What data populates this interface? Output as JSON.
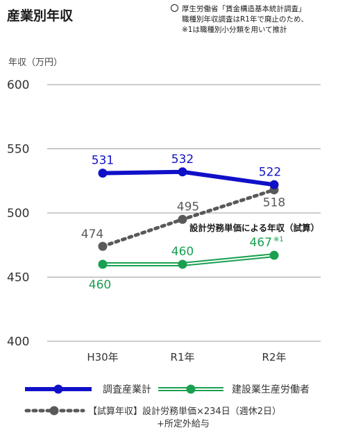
{
  "header": {
    "title": "産業別年収",
    "note_lines": [
      "厚生労働省「賃金構造基本統計調査」",
      "職種別年収調査はR1年で廃止のため、",
      "※1は職種別小分類を用いて推計"
    ]
  },
  "chart_data": {
    "type": "line",
    "ylabel": "年収（万円）",
    "ylim": [
      400,
      600
    ],
    "yticks": [
      400,
      450,
      500,
      550,
      600
    ],
    "grid": true,
    "categories": [
      "H30年",
      "R1年",
      "R2年"
    ],
    "series": [
      {
        "name": "調査産業計",
        "values": [
          531,
          532,
          522
        ],
        "labels": [
          "531",
          "532",
          "522"
        ],
        "color": "#1010c8",
        "style": "solid"
      },
      {
        "name": "建設業生産労働者",
        "values": [
          460,
          460,
          467
        ],
        "labels": [
          "460",
          "460",
          "467"
        ],
        "last_label_note": "※1",
        "color": "#18a050",
        "style": "double"
      },
      {
        "name": "【試算年収】設計労務単価×234日（週休2日）",
        "name_line2": "+所定外給与",
        "values": [
          474,
          495,
          518
        ],
        "labels": [
          "474",
          "495",
          "518"
        ],
        "color": "#595959",
        "style": "dotted"
      }
    ],
    "annotation": "設計労務単価による年収（試算）"
  }
}
